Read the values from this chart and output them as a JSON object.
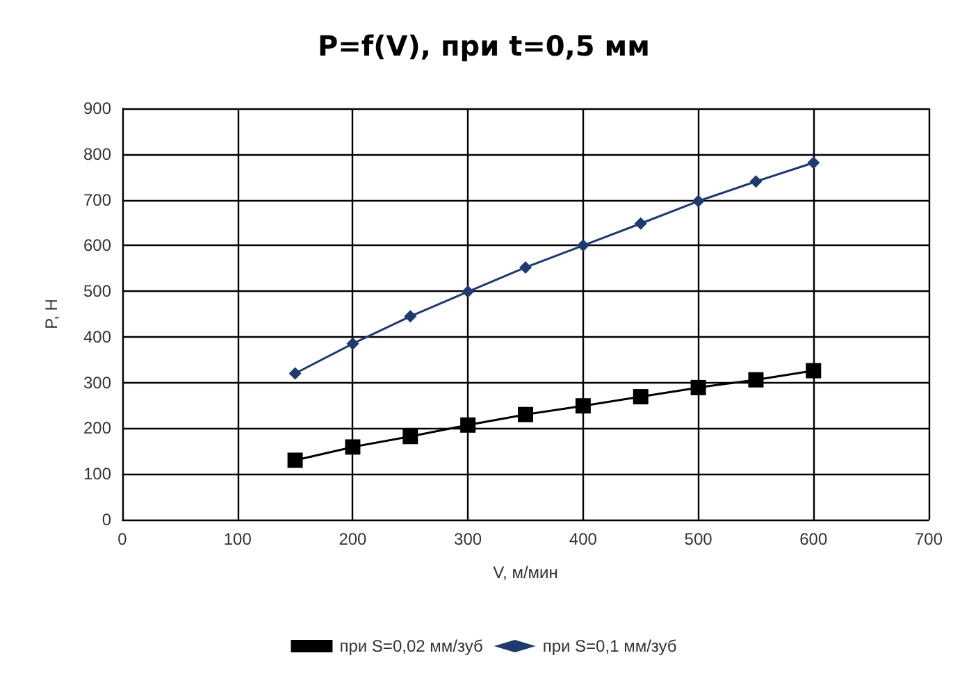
{
  "chart_data": {
    "type": "line",
    "title": "P=f(V), при t=0,5 мм",
    "xlabel": "V, м/мин",
    "ylabel": "P, H",
    "x": [
      150,
      200,
      250,
      300,
      350,
      400,
      450,
      500,
      550,
      600
    ],
    "series": [
      {
        "name": "при S=0,02 мм/зуб",
        "color": "#000000",
        "marker": "square",
        "values": [
          130,
          159,
          182,
          207,
          230,
          249,
          269,
          289,
          306,
          326
        ]
      },
      {
        "name": "при S=0,1 мм/зуб",
        "color": "#1f3a6e",
        "marker": "diamond",
        "values": [
          320,
          385,
          445,
          499,
          552,
          600,
          648,
          697,
          740,
          781
        ]
      }
    ],
    "xlim": [
      0,
      700
    ],
    "xticks": [
      0,
      100,
      200,
      300,
      400,
      500,
      600,
      700
    ],
    "ylim": [
      0,
      900
    ],
    "yticks": [
      0,
      100,
      200,
      300,
      400,
      500,
      600,
      700,
      800,
      900
    ],
    "grid": true,
    "legend": "bottom"
  }
}
